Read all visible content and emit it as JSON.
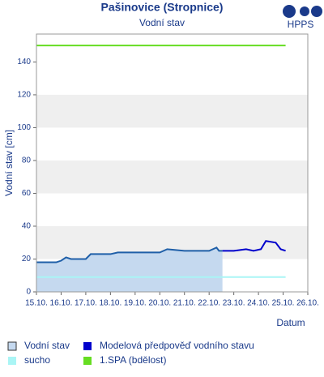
{
  "chart_data": {
    "type": "line",
    "title": "Pašinovice (Stropnice)",
    "subtitle": "Vodní stav",
    "y_label": "Vodní stav [cm]",
    "x_label": "Datum",
    "logo": "HPPS",
    "xlim": [
      15,
      26
    ],
    "xticks": [
      {
        "value": 15,
        "label": "15.10."
      },
      {
        "value": 16,
        "label": "16.10."
      },
      {
        "value": 17,
        "label": "17.10."
      },
      {
        "value": 18,
        "label": "18.10."
      },
      {
        "value": 19,
        "label": "19.10."
      },
      {
        "value": 20,
        "label": "20.10."
      },
      {
        "value": 21,
        "label": "21.10."
      },
      {
        "value": 22,
        "label": "22.10."
      },
      {
        "value": 23,
        "label": "23.10."
      },
      {
        "value": 24,
        "label": "24.10."
      },
      {
        "value": 25,
        "label": "25.10."
      },
      {
        "value": 26,
        "label": "26.10."
      }
    ],
    "ylim": [
      0,
      157
    ],
    "yticks": [
      0,
      20,
      40,
      60,
      80,
      100,
      120,
      140
    ],
    "grid": true,
    "series": [
      {
        "name": "Vodní stav",
        "color": "#1f5fa8",
        "fill": "#c5d9ef",
        "x": [
          15,
          15.8,
          16.0,
          16.2,
          16.4,
          17.0,
          17.2,
          18.0,
          18.3,
          19.0,
          20.0,
          20.3,
          21.0,
          22.0,
          22.3,
          22.4,
          22.54
        ],
        "values": [
          18,
          18,
          19,
          21,
          20,
          20,
          23,
          23,
          24,
          24,
          24,
          26,
          25,
          25,
          27,
          25,
          25
        ]
      },
      {
        "name": "Modelová předpověď vodního stavu",
        "color": "#0000cc",
        "x": [
          22.54,
          23.0,
          23.5,
          23.8,
          24.1,
          24.3,
          24.7,
          24.9,
          25.1
        ],
        "values": [
          25,
          25,
          26,
          25,
          26,
          31,
          30,
          26,
          25
        ]
      },
      {
        "name": "sucho",
        "color": "#aaf5f5",
        "x": [
          15,
          25.1
        ],
        "values": [
          9,
          9
        ]
      },
      {
        "name": "1.SPA (bdělost)",
        "color": "#66dd22",
        "x": [
          15,
          25.1
        ],
        "values": [
          150,
          150
        ]
      }
    ]
  }
}
